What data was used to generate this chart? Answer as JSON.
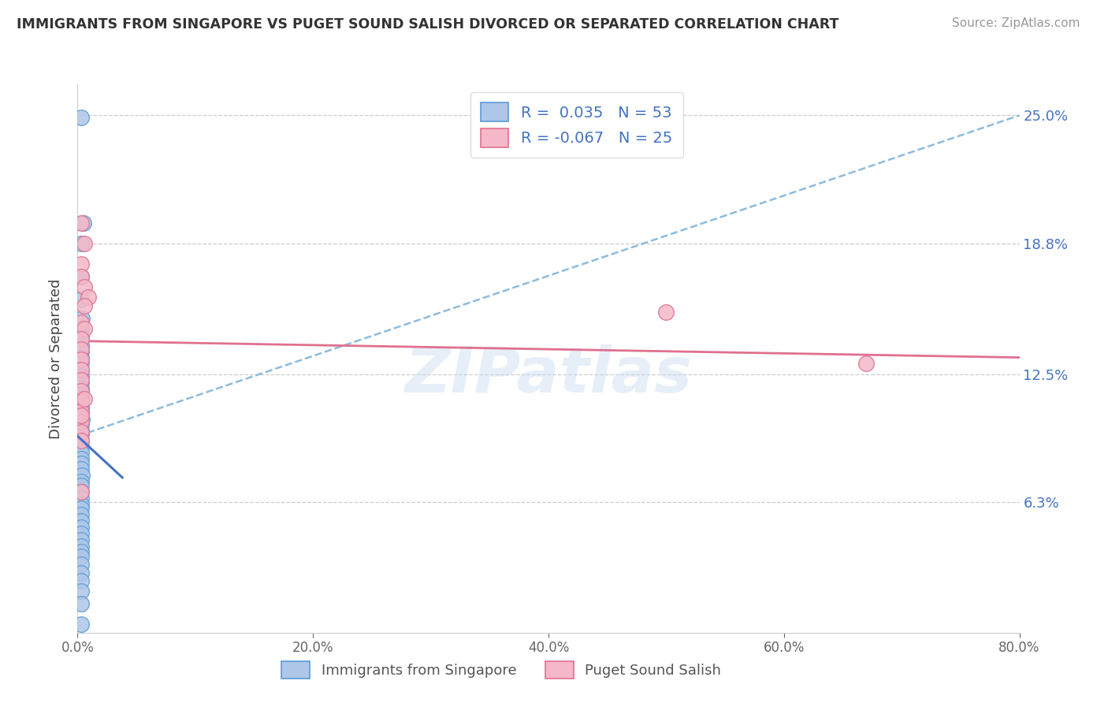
{
  "title": "IMMIGRANTS FROM SINGAPORE VS PUGET SOUND SALISH DIVORCED OR SEPARATED CORRELATION CHART",
  "source": "Source: ZipAtlas.com",
  "ylabel": "Divorced or Separated",
  "xlabel_ticks": [
    "0.0%",
    "20.0%",
    "40.0%",
    "60.0%",
    "80.0%"
  ],
  "ytick_values": [
    0.063,
    0.125,
    0.188,
    0.25
  ],
  "ytick_labels": [
    "6.3%",
    "12.5%",
    "18.8%",
    "25.0%"
  ],
  "xlim": [
    0.0,
    0.8
  ],
  "ylim": [
    0.0,
    0.265
  ],
  "legend1_R": "0.035",
  "legend1_N": "53",
  "legend2_R": "-0.067",
  "legend2_N": "25",
  "blue_fill": "#aec6e8",
  "blue_edge": "#5b9bd5",
  "pink_fill": "#f4b8c8",
  "pink_edge": "#e07090",
  "blue_trend_dash_color": "#7ab0d8",
  "blue_trend_solid_color": "#4472C4",
  "pink_trend_color": "#e07090",
  "watermark": "ZIPatlas",
  "blue_dash_line": {
    "x0": 0.0,
    "y0": 0.095,
    "x1": 0.8,
    "y1": 0.25
  },
  "blue_solid_line": {
    "x0": 0.0,
    "y0": 0.095,
    "x1": 0.038,
    "y1": 0.075
  },
  "pink_solid_line": {
    "x0": 0.0,
    "y0": 0.141,
    "x1": 0.8,
    "y1": 0.133
  },
  "blue_x": [
    0.003,
    0.005,
    0.003,
    0.003,
    0.003,
    0.004,
    0.003,
    0.003,
    0.003,
    0.003,
    0.003,
    0.003,
    0.003,
    0.003,
    0.003,
    0.003,
    0.003,
    0.003,
    0.003,
    0.003,
    0.003,
    0.003,
    0.004,
    0.003,
    0.003,
    0.003,
    0.003,
    0.003,
    0.003,
    0.003,
    0.003,
    0.003,
    0.004,
    0.003,
    0.003,
    0.003,
    0.003,
    0.003,
    0.003,
    0.003,
    0.003,
    0.003,
    0.003,
    0.003,
    0.003,
    0.003,
    0.003,
    0.003,
    0.003,
    0.003,
    0.003,
    0.003,
    0.003
  ],
  "blue_y": [
    0.249,
    0.198,
    0.188,
    0.172,
    0.161,
    0.152,
    0.147,
    0.143,
    0.139,
    0.136,
    0.133,
    0.13,
    0.127,
    0.124,
    0.121,
    0.118,
    0.115,
    0.113,
    0.111,
    0.109,
    0.107,
    0.105,
    0.103,
    0.101,
    0.098,
    0.096,
    0.093,
    0.09,
    0.087,
    0.084,
    0.082,
    0.079,
    0.076,
    0.073,
    0.071,
    0.068,
    0.065,
    0.062,
    0.06,
    0.057,
    0.054,
    0.051,
    0.048,
    0.045,
    0.042,
    0.039,
    0.037,
    0.033,
    0.029,
    0.025,
    0.02,
    0.014,
    0.004
  ],
  "pink_x": [
    0.003,
    0.006,
    0.003,
    0.003,
    0.006,
    0.009,
    0.006,
    0.003,
    0.006,
    0.003,
    0.003,
    0.003,
    0.003,
    0.003,
    0.003,
    0.003,
    0.003,
    0.003,
    0.003,
    0.006,
    0.003,
    0.5,
    0.67,
    0.003,
    0.003
  ],
  "pink_y": [
    0.198,
    0.188,
    0.178,
    0.172,
    0.167,
    0.162,
    0.158,
    0.15,
    0.147,
    0.142,
    0.137,
    0.132,
    0.127,
    0.122,
    0.117,
    0.112,
    0.107,
    0.102,
    0.097,
    0.113,
    0.068,
    0.155,
    0.13,
    0.105,
    0.093
  ]
}
